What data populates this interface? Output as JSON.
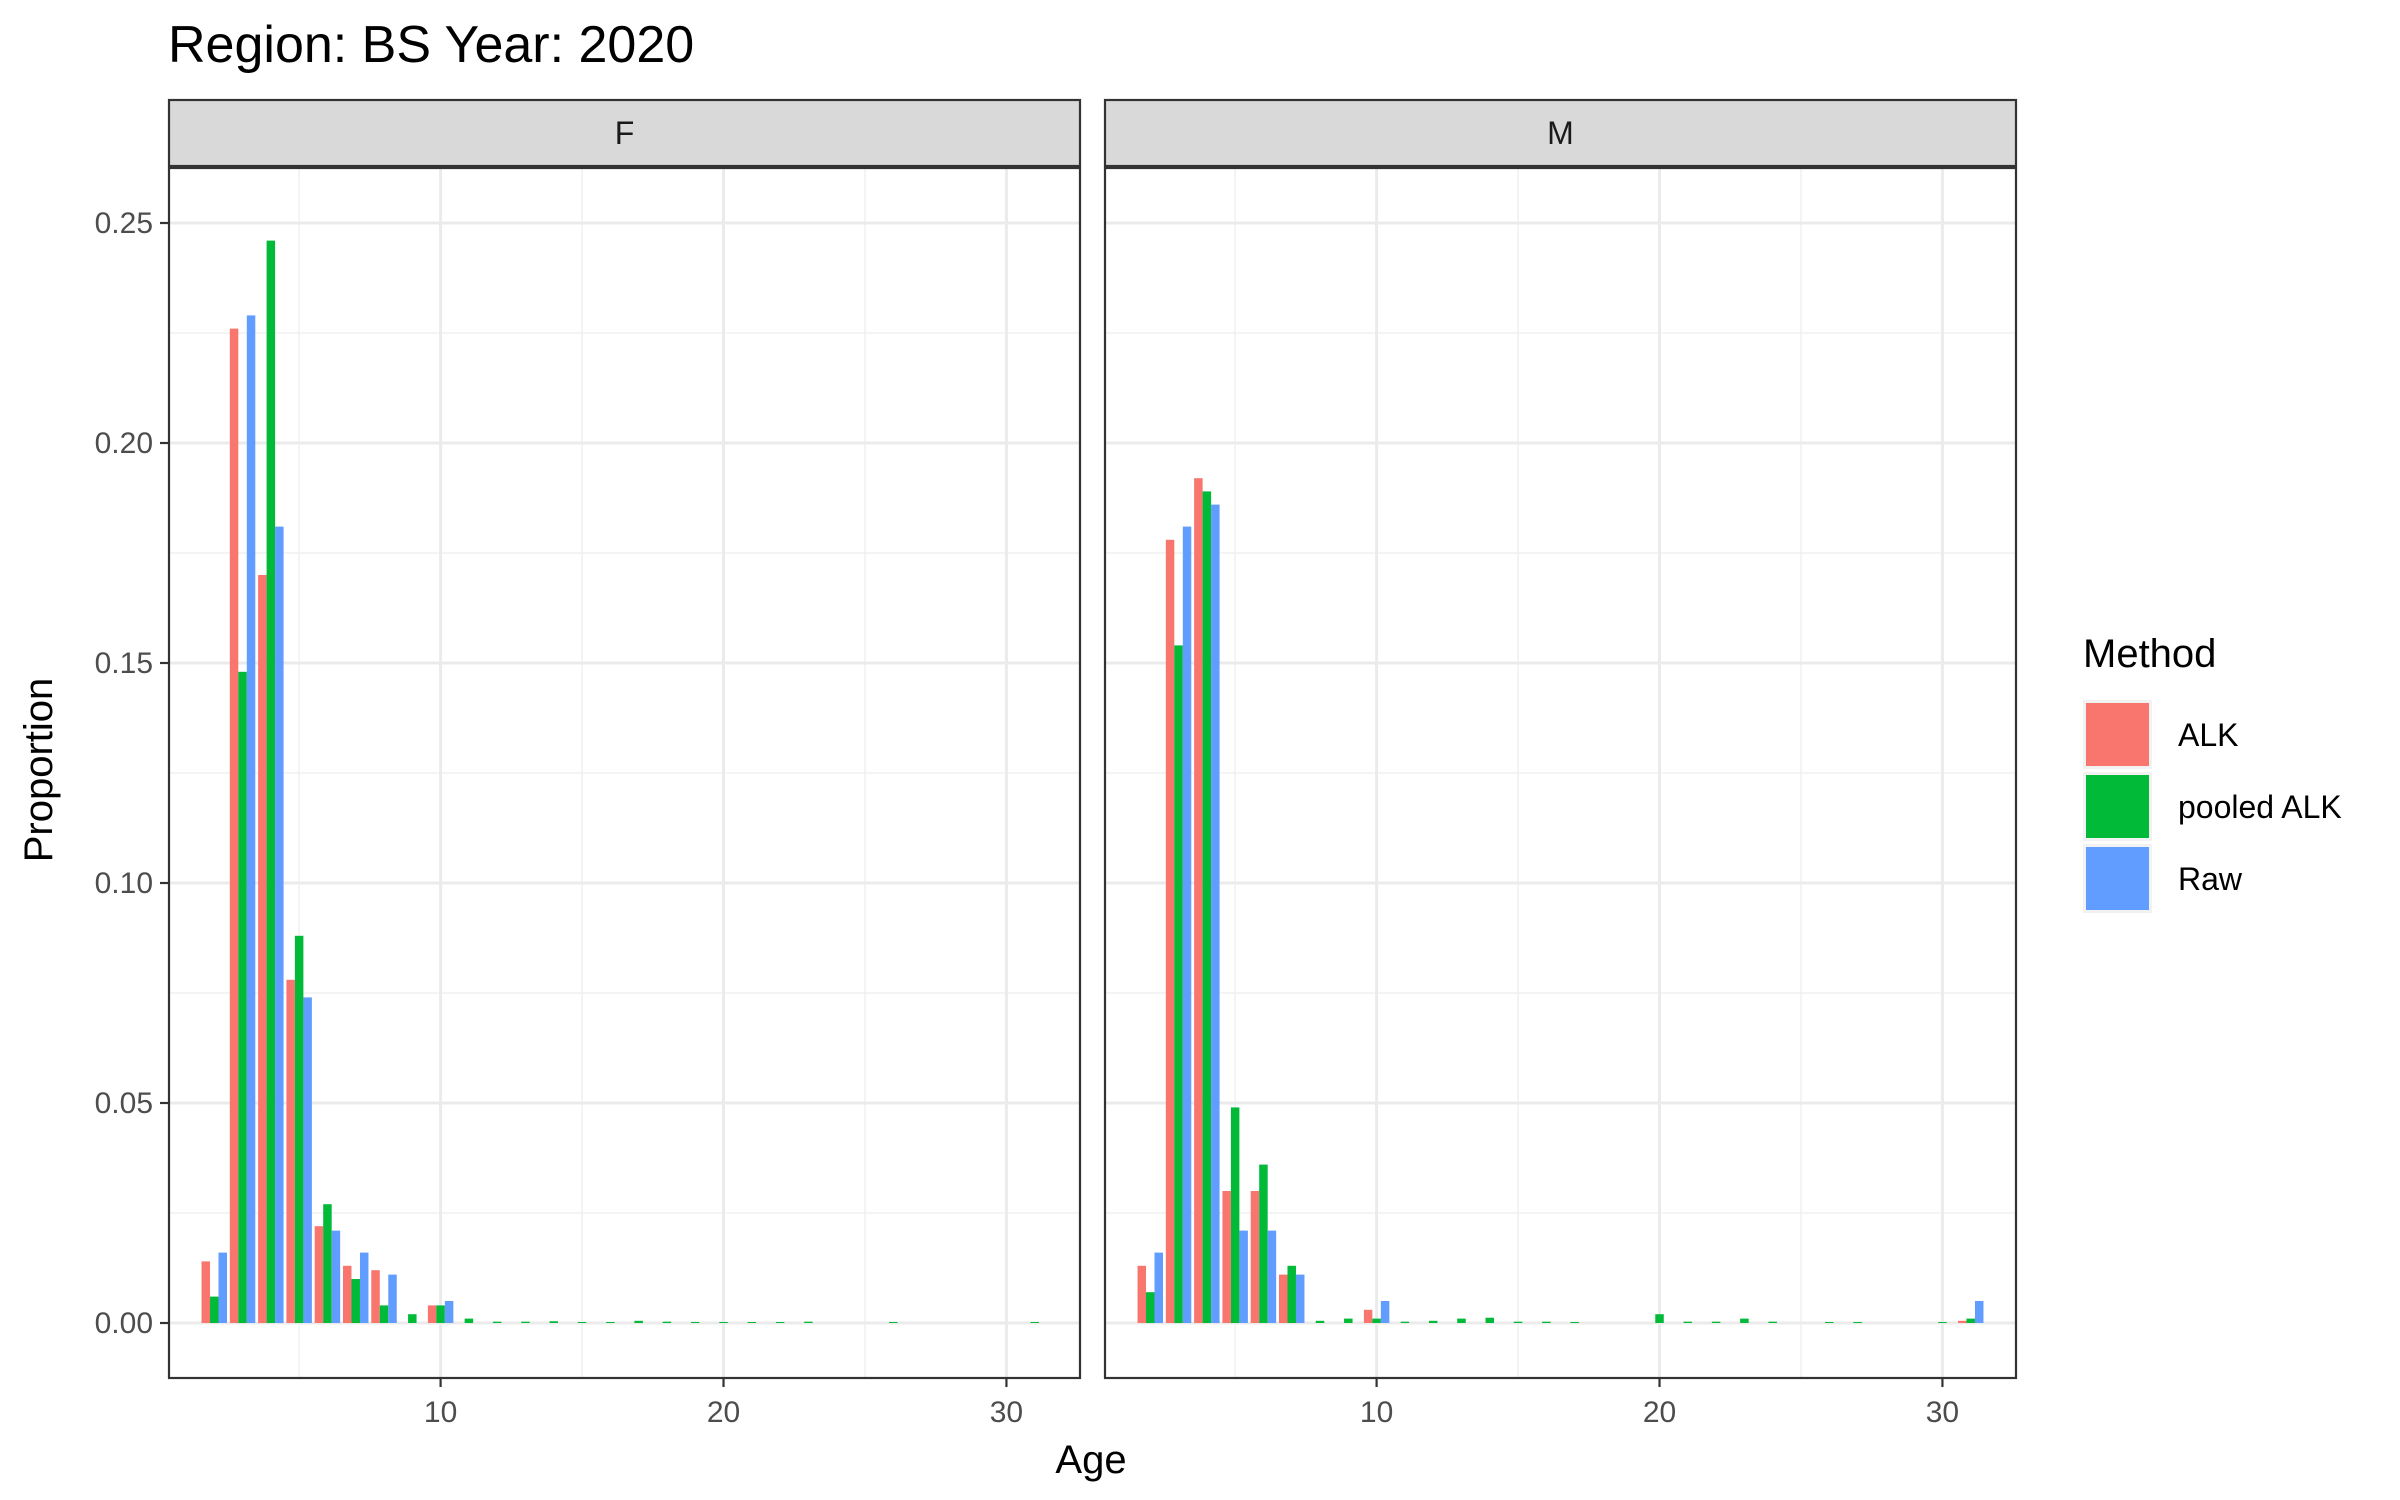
{
  "chart_data": {
    "type": "bar",
    "title": "Region: BS Year: 2020",
    "xlabel": "Age",
    "ylabel": "Proportion",
    "xlim": [
      0.4,
      32.6
    ],
    "ylim": [
      -0.0125,
      0.2625
    ],
    "x_ticks": [
      10,
      20,
      30
    ],
    "y_ticks": [
      0.0,
      0.05,
      0.1,
      0.15,
      0.2,
      0.25
    ],
    "y_tick_labels": [
      "0.00",
      "0.05",
      "0.10",
      "0.15",
      "0.20",
      "0.25"
    ],
    "grid": true,
    "legend": {
      "title": "Method",
      "position": "right",
      "entries": [
        "ALK",
        "pooled ALK",
        "Raw"
      ]
    },
    "colors": {
      "ALK": "#F8766D",
      "pooled ALK": "#00BA38",
      "Raw": "#619CFF"
    },
    "panels": [
      {
        "label": "F",
        "series": [
          {
            "name": "ALK",
            "x": [
              2,
              3,
              4,
              5,
              6,
              7,
              8,
              10
            ],
            "values": [
              0.014,
              0.226,
              0.17,
              0.078,
              0.022,
              0.013,
              0.012,
              0.004
            ]
          },
          {
            "name": "pooled ALK",
            "x": [
              2,
              3,
              4,
              5,
              6,
              7,
              8,
              9,
              10,
              11,
              12,
              13,
              14,
              15,
              16,
              17,
              18,
              19,
              20,
              21,
              22,
              23,
              26,
              31
            ],
            "values": [
              0.006,
              0.148,
              0.246,
              0.088,
              0.027,
              0.01,
              0.004,
              0.002,
              0.004,
              0.001,
              0.0003,
              0.0003,
              0.0004,
              0.0002,
              0.0002,
              0.0005,
              0.0003,
              0.0002,
              0.0001,
              0.0001,
              0.0001,
              0.0003,
              0.0002,
              0.0002
            ]
          },
          {
            "name": "Raw",
            "x": [
              2,
              3,
              4,
              5,
              6,
              7,
              8,
              10
            ],
            "values": [
              0.016,
              0.229,
              0.181,
              0.074,
              0.021,
              0.016,
              0.011,
              0.005
            ]
          }
        ]
      },
      {
        "label": "M",
        "series": [
          {
            "name": "ALK",
            "x": [
              2,
              3,
              4,
              5,
              6,
              7,
              10,
              31
            ],
            "values": [
              0.013,
              0.178,
              0.192,
              0.03,
              0.03,
              0.011,
              0.003,
              0.0005
            ]
          },
          {
            "name": "pooled ALK",
            "x": [
              2,
              3,
              4,
              5,
              6,
              7,
              8,
              9,
              10,
              11,
              12,
              13,
              14,
              15,
              16,
              17,
              20,
              21,
              22,
              23,
              24,
              26,
              27,
              30,
              31
            ],
            "values": [
              0.007,
              0.154,
              0.189,
              0.049,
              0.036,
              0.013,
              0.0005,
              0.001,
              0.001,
              0.0003,
              0.0005,
              0.001,
              0.0012,
              0.0003,
              0.0003,
              0.0002,
              0.002,
              0.0003,
              0.0003,
              0.001,
              0.0003,
              0.0002,
              0.0002,
              0.0002,
              0.001
            ]
          },
          {
            "name": "Raw",
            "x": [
              2,
              3,
              4,
              5,
              6,
              7,
              10,
              31
            ],
            "values": [
              0.016,
              0.181,
              0.186,
              0.021,
              0.021,
              0.011,
              0.005,
              0.005
            ]
          }
        ]
      }
    ]
  }
}
